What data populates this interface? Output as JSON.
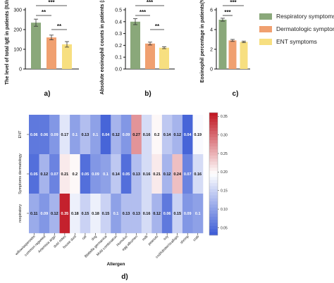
{
  "colors": {
    "respiratory": "#8aa87a",
    "dermatologic": "#f0a070",
    "ent": "#f7df80",
    "axis": "#111111",
    "heat_low": "#3b5bd6",
    "heat_mid": "#ffffff",
    "heat_high": "#c0131f"
  },
  "legend": [
    {
      "label": "Respiratory symptoms",
      "color": "#8aa87a"
    },
    {
      "label": "Dermatologic symptoms",
      "color": "#f0a070"
    },
    {
      "label": "ENT symptoms",
      "color": "#f7df80"
    }
  ],
  "chart_data": [
    {
      "type": "bar",
      "panel_label": "a)",
      "ylabel": "The level of total IgE in patients (IU/ml)",
      "ylim": [
        0,
        300
      ],
      "yticks": [
        "0",
        "100",
        "200",
        "300"
      ],
      "categories": [
        "Respiratory",
        "Dermatologic",
        "ENT"
      ],
      "values": [
        235,
        160,
        125
      ],
      "errors": [
        18,
        12,
        14
      ],
      "significance": [
        {
          "from": 0,
          "to": 1,
          "label": "**"
        },
        {
          "from": 0,
          "to": 2,
          "label": "***"
        },
        {
          "from": 1,
          "to": 2,
          "label": "**"
        }
      ]
    },
    {
      "type": "bar",
      "panel_label": "b)",
      "ylabel": "Absolute eosinophil counts in patients (x10⁹/L)",
      "ylim": [
        0,
        0.5
      ],
      "yticks": [
        "0.0",
        "0.1",
        "0.2",
        "0.3",
        "0.4",
        "0.5"
      ],
      "categories": [
        "Respiratory",
        "Dermatologic",
        "ENT"
      ],
      "values": [
        0.4,
        0.215,
        0.18
      ],
      "errors": [
        0.025,
        0.012,
        0.008
      ],
      "significance": [
        {
          "from": 0,
          "to": 1,
          "label": "***"
        },
        {
          "from": 0,
          "to": 2,
          "label": "***"
        },
        {
          "from": 1,
          "to": 2,
          "label": "**"
        }
      ]
    },
    {
      "type": "bar",
      "panel_label": "c)",
      "ylabel": "Eosinophil percentage in patients(%)",
      "ylim": [
        0,
        6
      ],
      "yticks": [
        "0",
        "2",
        "4",
        "6"
      ],
      "categories": [
        "Respiratory",
        "Dermatologic",
        "ENT"
      ],
      "values": [
        5.0,
        2.9,
        2.75
      ],
      "errors": [
        0.15,
        0.1,
        0.08
      ],
      "significance": [
        {
          "from": 0,
          "to": 1,
          "label": "***"
        },
        {
          "from": 0,
          "to": 2,
          "label": "***"
        }
      ]
    },
    {
      "type": "heatmap",
      "panel_label": "d)",
      "xlabel": "Allergen",
      "row_labels": [
        "ENT",
        "Symptoms dermatology",
        "respiratory"
      ],
      "col_labels": [
        "willow/aspen/elm",
        "common ragweed",
        "Artemisia argyi",
        "dust mites",
        "house dust",
        "cat",
        "dog",
        "Blattella germanica",
        "Mold combination",
        "Humulus",
        "egg albumen",
        "milk",
        "peanuts",
        "soy",
        "cod/lobster/scallops",
        "shrimp",
        "crab"
      ],
      "values": [
        [
          0.06,
          0.06,
          0.09,
          0.17,
          0.1,
          0.13,
          0.1,
          0.04,
          0.12,
          0.09,
          0.27,
          0.16,
          0.2,
          0.14,
          0.12,
          0.04,
          0.19
        ],
        [
          0.05,
          0.12,
          0.07,
          0.21,
          0.2,
          0.05,
          0.09,
          0.1,
          0.14,
          0.05,
          0.13,
          0.16,
          0.21,
          0.12,
          0.24,
          0.07,
          0.16
        ],
        [
          0.11,
          0.09,
          0.12,
          0.35,
          0.18,
          0.15,
          0.18,
          0.15,
          0.1,
          0.13,
          0.13,
          0.16,
          0.12,
          0.06,
          0.15,
          0.09,
          0.1
        ]
      ],
      "colorbar_ticks": [
        "0.35",
        "0.30",
        "0.25",
        "0.20",
        "0.15",
        "0.10",
        "0.05"
      ],
      "vmin": 0.03,
      "vmax": 0.36
    }
  ]
}
